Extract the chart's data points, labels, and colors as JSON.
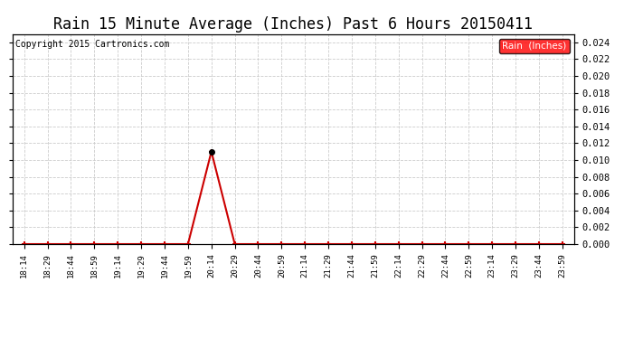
{
  "title": "Rain 15 Minute Average (Inches) Past 6 Hours 20150411",
  "copyright": "Copyright 2015 Cartronics.com",
  "legend_label": "Rain  (Inches)",
  "legend_bg": "#ff0000",
  "legend_text_color": "#ffffff",
  "line_color": "#cc0000",
  "marker_color": "#000000",
  "background_color": "#ffffff",
  "grid_color": "#cccccc",
  "title_fontsize": 12,
  "tick_labels": [
    "18:14",
    "18:29",
    "18:44",
    "18:59",
    "19:14",
    "19:29",
    "19:44",
    "19:59",
    "20:14",
    "20:29",
    "20:44",
    "20:59",
    "21:14",
    "21:29",
    "21:44",
    "21:59",
    "22:14",
    "22:29",
    "22:44",
    "22:59",
    "23:14",
    "23:29",
    "23:44",
    "23:59"
  ],
  "values": [
    0.0,
    0.0,
    0.0,
    0.0,
    0.0,
    0.0,
    0.0,
    0.0,
    0.011,
    0.0,
    0.0,
    0.0,
    0.0,
    0.0,
    0.0,
    0.0,
    0.0,
    0.0,
    0.0,
    0.0,
    0.0,
    0.0,
    0.0,
    0.0
  ],
  "ylim": [
    0.0,
    0.025
  ],
  "yticks": [
    0.0,
    0.002,
    0.004,
    0.006,
    0.008,
    0.01,
    0.012,
    0.014,
    0.016,
    0.018,
    0.02,
    0.022,
    0.024
  ]
}
